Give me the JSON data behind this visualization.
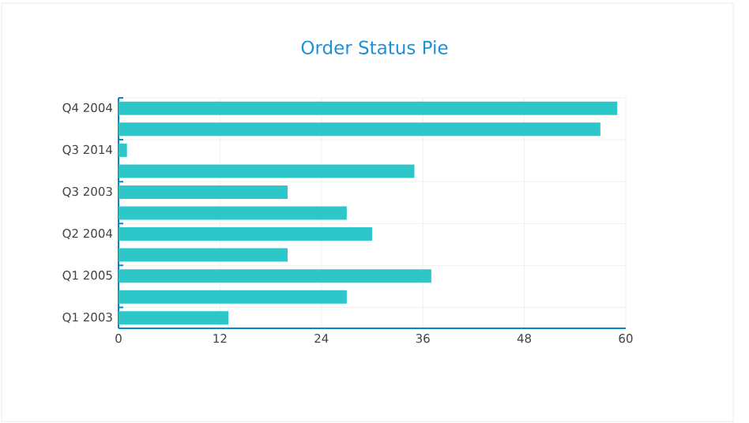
{
  "chart_data": {
    "type": "bar",
    "orientation": "horizontal",
    "title": "Order Status Pie",
    "categories": [
      "Q4 2004",
      null,
      "Q3 2014",
      null,
      "Q3 2003",
      null,
      "Q2 2004",
      null,
      "Q1 2005",
      null,
      "Q1 2003"
    ],
    "values": [
      59,
      57,
      1,
      35,
      20,
      27,
      30,
      20,
      37,
      27,
      13
    ],
    "color": "#2ec7c9",
    "xlim": [
      0,
      60
    ],
    "xticks": [
      0,
      12,
      24,
      36,
      48,
      60
    ],
    "grid": true
  }
}
